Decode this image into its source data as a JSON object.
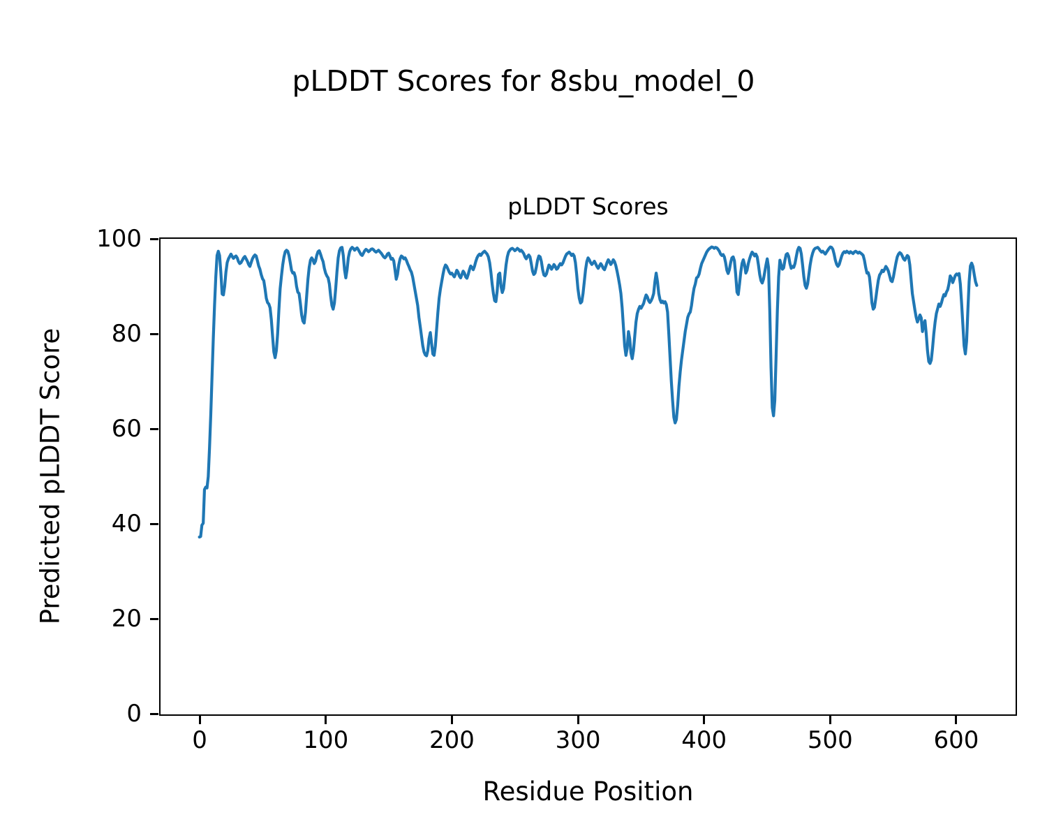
{
  "figure": {
    "suptitle": "pLDDT Scores for 8sbu_model_0",
    "background": "#ffffff"
  },
  "chart_data": {
    "type": "line",
    "title": "pLDDT Scores",
    "xlabel": "Residue Position",
    "ylabel": "Predicted pLDDT Score",
    "x_ticks": [
      0,
      100,
      200,
      300,
      400,
      500,
      600
    ],
    "y_ticks": [
      0,
      20,
      40,
      60,
      80,
      100
    ],
    "xlim": [
      -30.8,
      646.8
    ],
    "ylim": [
      0,
      100
    ],
    "grid": false,
    "legend": "none",
    "line_color": "#1f77b4",
    "axis_color": "#000000",
    "series": [
      {
        "name": "pLDDT",
        "x_start": 0,
        "x_step": 1,
        "values": [
          37.3,
          37.4,
          39.8,
          40.2,
          47.3,
          47.8,
          47.6,
          50,
          56,
          63,
          71,
          79,
          86,
          92,
          96.5,
          97.4,
          96.5,
          93,
          88.4,
          88.2,
          90,
          93,
          95,
          95.8,
          96.3,
          96.8,
          96.3,
          95.9,
          96.2,
          96.4,
          96,
          95.2,
          94.8,
          95,
          95.5,
          96,
          96.3,
          95.8,
          95.3,
          94.6,
          94.2,
          95,
          95.8,
          96.3,
          96.6,
          96.4,
          95.4,
          94.3,
          93.6,
          92.5,
          91.6,
          91.2,
          89.5,
          87.5,
          86.6,
          86.3,
          85.5,
          83,
          79.5,
          76.2,
          75,
          76.5,
          80,
          85,
          89.5,
          92.2,
          94.5,
          96.2,
          97.3,
          97.6,
          97.4,
          96.5,
          95,
          93.4,
          92.8,
          92.9,
          92,
          90,
          88.8,
          88.5,
          86.5,
          84,
          82.7,
          82.3,
          84.5,
          88,
          91.5,
          94,
          95.5,
          96,
          95.6,
          94.8,
          95.3,
          96.5,
          97.3,
          97.5,
          96.8,
          95.9,
          95.2,
          93.8,
          92.8,
          92.2,
          91.8,
          90.5,
          88,
          86,
          85.2,
          86.5,
          89.5,
          93,
          96,
          97.5,
          98.1,
          98.2,
          96.5,
          93.5,
          91.8,
          93.5,
          96,
          97.3,
          97.9,
          98.2,
          98,
          97.6,
          97.9,
          98.1,
          97.7,
          97.2,
          96.7,
          96.5,
          97,
          97.5,
          97.8,
          97.6,
          97.3,
          97.5,
          97.8,
          97.9,
          97.7,
          97.4,
          97.2,
          97.4,
          97.6,
          97.3,
          97,
          96.6,
          96.2,
          96,
          96.3,
          96.8,
          97,
          96.4,
          95.7,
          95.9,
          95.4,
          93.5,
          91.5,
          92.5,
          94.5,
          95.8,
          96.4,
          96.2,
          95.8,
          96,
          95.5,
          94.8,
          94.2,
          93.5,
          93,
          92,
          90.5,
          89,
          87.5,
          86,
          83.5,
          81.5,
          79.5,
          77.5,
          76.2,
          75.6,
          75.4,
          76.5,
          79,
          80.3,
          78,
          75.8,
          75.5,
          77.5,
          81,
          84.5,
          87.5,
          89.5,
          91,
          92.5,
          93.8,
          94.5,
          94.2,
          93.6,
          93,
          92.6,
          92.8,
          92.4,
          92,
          92.6,
          93.4,
          93,
          92.2,
          91.8,
          92.5,
          93.2,
          92.8,
          92,
          91.7,
          92.5,
          93.5,
          94.3,
          94,
          93.5,
          94.2,
          95.2,
          96,
          96.5,
          96.8,
          96.5,
          96.9,
          97.2,
          97.4,
          97.1,
          96.8,
          96.2,
          95,
          93,
          90.5,
          88.5,
          87,
          86.8,
          89,
          92.5,
          92.8,
          90,
          88.7,
          89.5,
          92,
          94.5,
          96.2,
          97.2,
          97.6,
          97.9,
          98,
          97.8,
          97.5,
          97.7,
          98,
          97.8,
          97.4,
          97.6,
          97.3,
          96.9,
          96.2,
          95.8,
          96.3,
          96.6,
          96.2,
          94.8,
          93.2,
          92.5,
          92.8,
          94,
          95.5,
          96.4,
          96.2,
          95.2,
          93.5,
          92.4,
          92.2,
          92.6,
          93.6,
          94.5,
          94.2,
          93.6,
          94,
          94.6,
          94.2,
          93.6,
          93.8,
          94.4,
          94.8,
          94.5,
          94.9,
          95.6,
          96.3,
          96.8,
          97,
          97.2,
          96.9,
          96.5,
          96.8,
          96.4,
          95,
          92.5,
          89.5,
          87.5,
          86.5,
          86.8,
          88.5,
          91,
          93.5,
          95.2,
          96,
          95.6,
          95,
          94.6,
          94.9,
          95.3,
          94.8,
          94.2,
          93.8,
          94.3,
          94.8,
          94.4,
          93.8,
          93.5,
          94.2,
          95,
          95.6,
          95.2,
          94.6,
          95,
          95.6,
          95.2,
          94.4,
          93.2,
          91.8,
          90.3,
          88.5,
          85.5,
          81.5,
          77.5,
          75.5,
          77,
          80.5,
          79,
          76,
          74.8,
          76.5,
          79.5,
          82.5,
          84.3,
          85.2,
          85.8,
          85.4,
          85.9,
          86.4,
          87.4,
          88.2,
          87.8,
          87,
          86.6,
          87,
          87.6,
          88.5,
          91,
          92.8,
          91,
          88.5,
          87.2,
          86.6,
          86.9,
          86.5,
          86.8,
          86.2,
          84.6,
          80,
          75,
          70,
          66,
          62.5,
          61.3,
          62,
          65,
          69,
          72,
          74.5,
          76.5,
          78.5,
          80.5,
          82,
          83.5,
          84.2,
          84.6,
          86,
          88,
          89.6,
          90.5,
          91.8,
          92,
          92.6,
          93.8,
          94.8,
          95.4,
          96,
          96.6,
          97.2,
          97.6,
          97.9,
          98.1,
          98.3,
          98.2,
          98,
          98.2,
          98.1,
          97.8,
          97.4,
          96.8,
          96.5,
          96.7,
          96.2,
          95,
          93.4,
          92.7,
          93.5,
          95,
          96,
          96.2,
          95.4,
          92.5,
          88.8,
          88.3,
          90.5,
          93,
          94.8,
          95.6,
          94.6,
          92.8,
          93.4,
          94.8,
          95.8,
          96.6,
          97.2,
          96.9,
          96.4,
          96.8,
          96.2,
          94.5,
          92.5,
          91.2,
          90.7,
          91.5,
          93,
          94.5,
          95.8,
          94,
          85,
          73,
          64.5,
          62.8,
          66,
          75,
          85,
          92,
          95.5,
          94.5,
          93.6,
          93.9,
          95.5,
          96.7,
          96.9,
          96.3,
          94.8,
          93.8,
          94.2,
          94,
          94.8,
          96.3,
          97.6,
          98.2,
          98,
          96.8,
          94.5,
          92,
          90.2,
          89.6,
          90.5,
          92.5,
          94.5,
          96,
          97,
          97.7,
          98,
          98.1,
          98.2,
          97.9,
          97.5,
          97.2,
          97.4,
          97.1,
          96.8,
          97.2,
          97.6,
          98,
          98.3,
          98.2,
          97.8,
          96.8,
          95.5,
          94.6,
          94.2,
          94.6,
          95.5,
          96.4,
          97,
          97.3,
          97.1,
          97.4,
          97.2,
          97,
          97.3,
          97.1,
          96.9,
          97.2,
          97.4,
          97.2,
          97,
          97.2,
          97,
          96.8,
          96.5,
          95.5,
          94,
          92.8,
          92.9,
          92,
          89.5,
          86.5,
          85.2,
          85.6,
          87.5,
          89.5,
          91.3,
          92.4,
          92.8,
          93.4,
          93.1,
          93.6,
          94.2,
          93.8,
          93.2,
          92.2,
          91.2,
          91,
          92,
          93.5,
          95,
          96.2,
          96.8,
          97.1,
          96.9,
          96.4,
          95.8,
          95.5,
          96,
          96.5,
          96.2,
          94.5,
          91.5,
          88.5,
          86.8,
          85,
          83.5,
          82.5,
          83.2,
          84,
          83.4,
          80.5,
          82,
          82.8,
          80,
          76.5,
          74.2,
          73.8,
          74.5,
          77,
          80,
          82.5,
          84.3,
          85.3,
          86.3,
          85.8,
          86.5,
          87.5,
          88.3,
          88,
          88.8,
          89.3,
          90.5,
          92.2,
          91.8,
          90.8,
          91.5,
          92.3,
          92.6,
          92.4,
          92.7,
          90.5,
          86.5,
          82,
          77.5,
          75.8,
          78.5,
          85,
          91,
          94.3,
          94.9,
          94.2,
          92.5,
          91,
          90.2
        ]
      }
    ]
  }
}
